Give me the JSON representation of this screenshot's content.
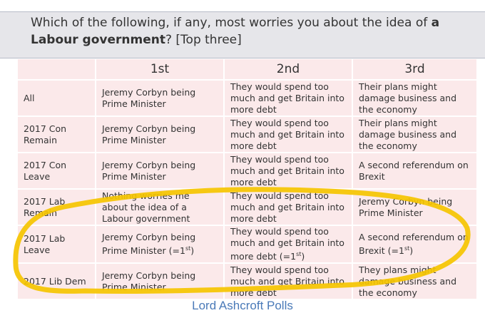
{
  "question": {
    "text": "Which of the following, if any, most worries you about the idea of ",
    "bold": "a Labour government",
    "suffix": "? [Top three]"
  },
  "headers": [
    "",
    "1st",
    "2nd",
    "3rd"
  ],
  "rows": [
    {
      "group": "All",
      "c1": "Jeremy Corbyn being Prime Minister",
      "c2": "They would spend too much and get Britain into more debt",
      "c3": "Their plans might damage business and the economy"
    },
    {
      "group": "2017 Con Remain",
      "c1": "Jeremy Corbyn being Prime Minister",
      "c2": "They would spend too much and get Britain into more debt",
      "c3": "Their plans might damage business and the economy"
    },
    {
      "group": "2017 Con Leave",
      "c1": "Jeremy Corbyn being Prime Minister",
      "c2": "They would spend too much and get Britain into more debt",
      "c3": "A second referendum on Brexit"
    },
    {
      "group": "2017 Lab Remain",
      "c1": "Nothing worries me about the idea of a Labour government",
      "c2": "They would spend too much and get Britain into more debt",
      "c3": "Jeremy Corbyn being Prime Minister"
    },
    {
      "group": "2017 Lab Leave",
      "c1": "Jeremy Corbyn being Prime Minister (=1st)",
      "c2": "They would spend too much and get Britain into more debt (=1st)",
      "c3": "A second referendum on Brexit (=1st)"
    },
    {
      "group": "2017 Lib Dem",
      "c1": "Jeremy Corbyn being Prime Minister",
      "c2": "They would spend too much and get Britain into more debt",
      "c3": "They plans might damage business and the economy"
    }
  ],
  "source": "Lord Ashcroft Polls",
  "colors": {
    "highlight": "#f5c400",
    "cell": "#fbe9ea",
    "source": "#4a7ab8"
  }
}
